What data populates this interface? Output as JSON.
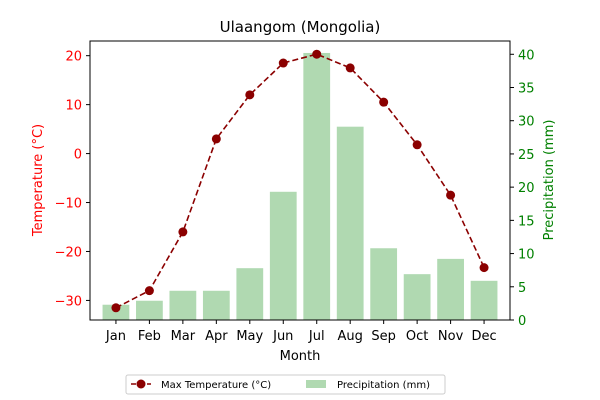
{
  "chart_data": {
    "type": "bar+line",
    "title": "Ulaangom (Mongolia)",
    "xlabel": "Month",
    "categories": [
      "Jan",
      "Feb",
      "Mar",
      "Apr",
      "May",
      "Jun",
      "Jul",
      "Aug",
      "Sep",
      "Oct",
      "Nov",
      "Dec"
    ],
    "left_axis": {
      "label": "Temperature (°C)",
      "color": "#ff0000",
      "range": [
        -34,
        23
      ],
      "ticks": [
        -30,
        -20,
        -10,
        0,
        10,
        20
      ],
      "tick_labels": [
        "−30",
        "−20",
        "−10",
        "0",
        "10",
        "20"
      ]
    },
    "right_axis": {
      "label": "Precipitation (mm)",
      "color": "#008000",
      "range": [
        0,
        42
      ],
      "ticks": [
        0,
        5,
        10,
        15,
        20,
        25,
        30,
        35,
        40
      ],
      "tick_labels": [
        "0",
        "5",
        "10",
        "15",
        "20",
        "25",
        "30",
        "35",
        "40"
      ]
    },
    "series": [
      {
        "name": "Max Temperature (°C)",
        "type": "line",
        "axis": "left",
        "color": "#8b0000",
        "style": "dashed",
        "marker": "circle",
        "values": [
          -31.5,
          -28.0,
          -16.0,
          3.0,
          12.0,
          18.5,
          20.3,
          17.5,
          10.5,
          1.8,
          -8.5,
          -23.3
        ]
      },
      {
        "name": "Precipitation (mm)",
        "type": "bar",
        "axis": "right",
        "color": "#b0d9b1",
        "values": [
          2.3,
          2.9,
          4.4,
          4.4,
          7.8,
          19.3,
          40.2,
          29.1,
          10.8,
          6.9,
          9.2,
          5.9
        ]
      }
    ],
    "legend": {
      "position": "bottom-center",
      "columns": 2
    },
    "grid": false
  }
}
